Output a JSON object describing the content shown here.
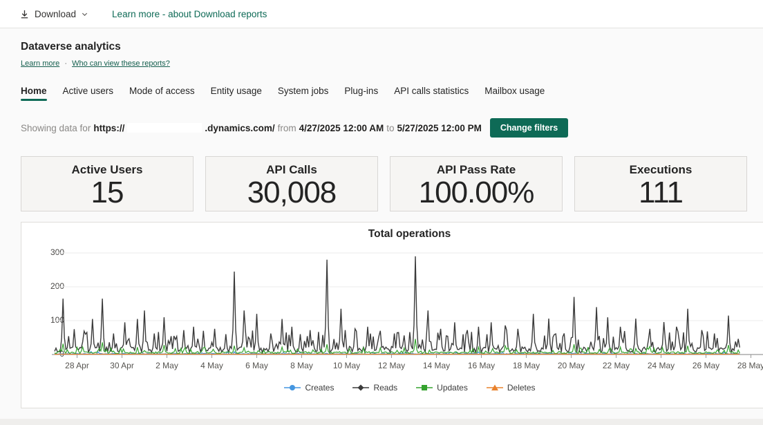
{
  "topbar": {
    "download_label": "Download",
    "learn_link": "Learn more - about Download reports"
  },
  "header": {
    "title": "Dataverse analytics",
    "link_learn_more": "Learn more",
    "separator": "·",
    "link_who_can_view": "Who can view these reports?"
  },
  "tabs": {
    "items": [
      {
        "label": "Home",
        "active": true
      },
      {
        "label": "Active users",
        "active": false
      },
      {
        "label": "Mode of access",
        "active": false
      },
      {
        "label": "Entity usage",
        "active": false
      },
      {
        "label": "System jobs",
        "active": false
      },
      {
        "label": "Plug-ins",
        "active": false
      },
      {
        "label": "API calls statistics",
        "active": false
      },
      {
        "label": "Mailbox usage",
        "active": false
      }
    ]
  },
  "filters": {
    "prefix": "Showing data for",
    "url_prefix": "https://",
    "url_suffix": ".dynamics.com/",
    "from_word": "from",
    "from_value": "4/27/2025 12:00 AM",
    "to_word": "to",
    "to_value": "5/27/2025 12:00 PM",
    "button_label": "Change filters"
  },
  "kpis": [
    {
      "title": "Active Users",
      "value": "15"
    },
    {
      "title": "API Calls",
      "value": "30,008"
    },
    {
      "title": "API Pass Rate",
      "value": "100.00%"
    },
    {
      "title": "Executions",
      "value": "111"
    }
  ],
  "colors": {
    "accent_teal": "#0e6a56",
    "axis_line": "#9a9a9a",
    "gridline": "#ebebeb"
  },
  "chart_data": {
    "type": "line",
    "title": "Total operations",
    "ylim": [
      0,
      300
    ],
    "y_ticks": [
      0,
      100,
      200,
      300
    ],
    "x_tick_labels": [
      "28 Apr",
      "30 Apr",
      "2 May",
      "4 May",
      "6 May",
      "8 May",
      "10 May",
      "12 May",
      "14 May",
      "16 May",
      "18 May",
      "20 May",
      "22 May",
      "24 May",
      "26 May",
      "28 May"
    ],
    "x_tick_days": [
      1,
      3,
      5,
      7,
      9,
      11,
      13,
      15,
      17,
      19,
      21,
      23,
      25,
      27,
      29,
      31
    ],
    "domain_days": 30.5,
    "points_count": 489,
    "grid": true,
    "legend_position": "bottom",
    "series": [
      {
        "name": "Creates",
        "color": "#4596e0",
        "marker": "circle",
        "base": 1.0,
        "noise": 2.5,
        "spike": 6,
        "spike_p": 0.1,
        "peaks": []
      },
      {
        "name": "Reads",
        "color": "#3b3b3b",
        "marker": "diamond",
        "base": 6,
        "noise": 16,
        "spike": 55,
        "spike_p": 0.28,
        "peaks": [
          [
            0.35,
            165
          ],
          [
            0.9,
            75
          ],
          [
            1.35,
            60
          ],
          [
            1.7,
            105
          ],
          [
            2.1,
            165
          ],
          [
            2.6,
            62
          ],
          [
            3.1,
            95
          ],
          [
            3.7,
            105
          ],
          [
            4.0,
            130
          ],
          [
            4.45,
            62
          ],
          [
            4.85,
            110
          ],
          [
            5.3,
            55
          ],
          [
            5.75,
            72
          ],
          [
            6.2,
            82
          ],
          [
            6.6,
            70
          ],
          [
            7.1,
            76
          ],
          [
            7.6,
            60
          ],
          [
            8.0,
            245
          ],
          [
            8.45,
            130
          ],
          [
            9.0,
            120
          ],
          [
            9.6,
            62
          ],
          [
            10.1,
            105
          ],
          [
            10.55,
            82
          ],
          [
            10.95,
            60
          ],
          [
            11.4,
            72
          ],
          [
            12.1,
            280
          ],
          [
            12.75,
            135
          ],
          [
            13.4,
            76
          ],
          [
            13.95,
            82
          ],
          [
            14.5,
            70
          ],
          [
            15.1,
            62
          ],
          [
            16.05,
            290
          ],
          [
            16.6,
            130
          ],
          [
            17.2,
            76
          ],
          [
            17.8,
            95
          ],
          [
            18.35,
            72
          ],
          [
            18.9,
            82
          ],
          [
            19.45,
            95
          ],
          [
            20.05,
            86
          ],
          [
            20.6,
            76
          ],
          [
            21.3,
            120
          ],
          [
            22.0,
            106
          ],
          [
            23.1,
            170
          ],
          [
            24.1,
            140
          ],
          [
            24.6,
            110
          ],
          [
            25.2,
            82
          ],
          [
            25.9,
            106
          ],
          [
            26.5,
            76
          ],
          [
            27.1,
            96
          ],
          [
            27.7,
            82
          ],
          [
            28.2,
            135
          ],
          [
            28.8,
            72
          ],
          [
            29.35,
            62
          ],
          [
            30.0,
            115
          ]
        ]
      },
      {
        "name": "Updates",
        "color": "#35a32f",
        "marker": "square",
        "base": 2.5,
        "noise": 6,
        "spike": 16,
        "spike_p": 0.15,
        "peaks": [
          [
            0.35,
            32
          ],
          [
            2.1,
            36
          ],
          [
            4.85,
            28
          ],
          [
            6.6,
            20
          ],
          [
            8.0,
            26
          ],
          [
            10.1,
            22
          ],
          [
            12.1,
            30
          ],
          [
            14.5,
            20
          ],
          [
            16.05,
            46
          ],
          [
            18.9,
            22
          ],
          [
            20.05,
            26
          ],
          [
            23.1,
            30
          ],
          [
            25.2,
            22
          ],
          [
            26.5,
            24
          ],
          [
            28.2,
            26
          ],
          [
            30.0,
            28
          ]
        ]
      },
      {
        "name": "Deletes",
        "color": "#e9822d",
        "marker": "triangle",
        "base": 0.6,
        "noise": 0.9,
        "spike": 0,
        "spike_p": 0,
        "peaks": []
      }
    ]
  }
}
